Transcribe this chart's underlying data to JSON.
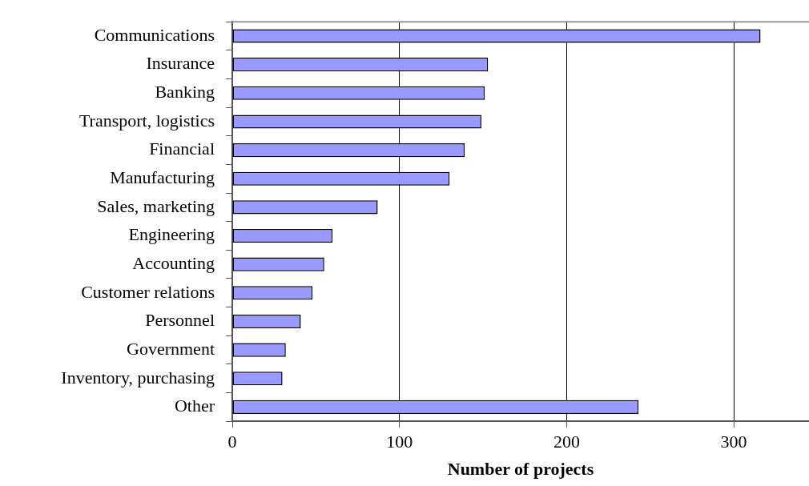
{
  "chart_data": {
    "type": "bar",
    "orientation": "horizontal",
    "xlabel": "Number of projects",
    "categories": [
      "Communications",
      "Insurance",
      "Banking",
      "Transport, logistics",
      "Financial",
      "Manufacturing",
      "Sales, marketing",
      "Engineering",
      "Accounting",
      "Customer relations",
      "Personnel",
      "Government",
      "Inventory, purchasing",
      "Other"
    ],
    "values": [
      316,
      153,
      151,
      149,
      139,
      130,
      87,
      60,
      55,
      48,
      41,
      32,
      30,
      243
    ],
    "color": "#9999ff",
    "xlim": [
      0,
      345
    ],
    "xticks": [
      0,
      100,
      200,
      300
    ],
    "grid": "x",
    "legend": false
  }
}
